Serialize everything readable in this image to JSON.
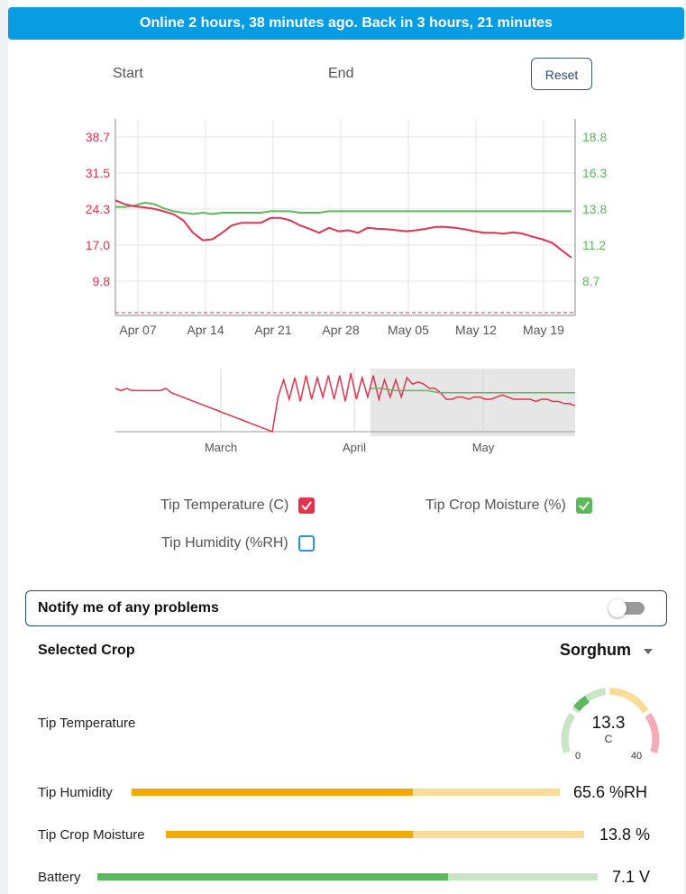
{
  "banner": {
    "text": "Online 2 hours, 38 minutes ago. Back in 3 hours, 21 minutes"
  },
  "range": {
    "start_label": "Start",
    "end_label": "End",
    "reset_label": "Reset"
  },
  "colors": {
    "banner": "#089de3",
    "temperature": "#e0344f",
    "moisture": "#5cb85c",
    "humidity": "#2a95d6",
    "bar_fill": "#f2a900",
    "bar_track": "#f9dc97",
    "battery_fill": "#5cb85c",
    "battery_track": "#c8e6c4"
  },
  "chart_data": [
    {
      "type": "line",
      "x_tick_labels": [
        "Apr 07",
        "Apr 14",
        "Apr 21",
        "Apr 28",
        "May 05",
        "May 12",
        "May 19"
      ],
      "y_left_ticks": [
        "38.7",
        "31.5",
        "24.3",
        "17.0",
        "9.8"
      ],
      "y_right_ticks": [
        "18.8",
        "16.3",
        "13.8",
        "11.2",
        "8.7"
      ],
      "grid": true,
      "series": [
        {
          "name": "Tip Temperature (C)",
          "axis": "left",
          "x": [
            "Apr 05",
            "Apr 06",
            "Apr 07",
            "Apr 08",
            "Apr 09",
            "Apr 10",
            "Apr 11",
            "Apr 12",
            "Apr 13",
            "Apr 14",
            "Apr 15",
            "Apr 16",
            "Apr 17",
            "Apr 18",
            "Apr 19",
            "Apr 20",
            "Apr 21",
            "Apr 22",
            "Apr 23",
            "Apr 24",
            "Apr 25",
            "Apr 26",
            "Apr 27",
            "Apr 28",
            "Apr 29",
            "Apr 30",
            "May 01",
            "May 02",
            "May 03",
            "May 04",
            "May 05",
            "May 06",
            "May 07",
            "May 08",
            "May 09",
            "May 10",
            "May 11",
            "May 12",
            "May 13",
            "May 14",
            "May 15",
            "May 16",
            "May 17",
            "May 18",
            "May 19",
            "May 20",
            "May 21",
            "May 22"
          ],
          "y": [
            26.0,
            25.2,
            24.8,
            24.6,
            24.3,
            23.8,
            23.2,
            22.0,
            19.5,
            18.0,
            18.2,
            19.5,
            21.0,
            21.5,
            21.5,
            21.5,
            22.5,
            22.5,
            22.0,
            21.0,
            20.3,
            19.5,
            20.5,
            19.8,
            20.0,
            19.5,
            20.5,
            20.3,
            20.2,
            20.0,
            19.8,
            20.0,
            20.3,
            20.7,
            20.7,
            20.5,
            20.2,
            19.8,
            19.5,
            19.5,
            19.3,
            19.6,
            19.3,
            18.7,
            18.2,
            17.5,
            16.0,
            14.5
          ]
        },
        {
          "name": "Tip Crop Moisture (%)",
          "axis": "right",
          "x": [
            "Apr 05",
            "Apr 06",
            "Apr 07",
            "Apr 08",
            "Apr 09",
            "Apr 10",
            "Apr 11",
            "Apr 12",
            "Apr 13",
            "Apr 14",
            "Apr 15",
            "Apr 16",
            "Apr 17",
            "Apr 18",
            "Apr 19",
            "Apr 20",
            "Apr 21",
            "Apr 22",
            "Apr 23",
            "Apr 24",
            "Apr 25",
            "Apr 26",
            "Apr 27",
            "Apr 28",
            "Apr 29",
            "Apr 30",
            "May 01",
            "May 02",
            "May 03",
            "May 04",
            "May 05",
            "May 06",
            "May 07",
            "May 08",
            "May 09",
            "May 10",
            "May 11",
            "May 12",
            "May 13",
            "May 14",
            "May 15",
            "May 16",
            "May 17",
            "May 18",
            "May 19",
            "May 20",
            "May 21",
            "May 22"
          ],
          "y": [
            13.9,
            13.9,
            14.0,
            14.2,
            14.1,
            13.8,
            13.6,
            13.5,
            13.4,
            13.5,
            13.4,
            13.5,
            13.5,
            13.5,
            13.5,
            13.5,
            13.6,
            13.6,
            13.6,
            13.5,
            13.5,
            13.5,
            13.6,
            13.6,
            13.6,
            13.6,
            13.6,
            13.6,
            13.6,
            13.6,
            13.6,
            13.6,
            13.6,
            13.6,
            13.6,
            13.6,
            13.6,
            13.6,
            13.6,
            13.6,
            13.6,
            13.6,
            13.6,
            13.6,
            13.6,
            13.6,
            13.6,
            13.6
          ]
        }
      ]
    },
    {
      "type": "line",
      "x_tick_labels": [
        "March",
        "April",
        "May"
      ],
      "series": [
        {
          "name": "Tip Temperature (C)",
          "y": [
            2,
            1.9,
            2,
            1.9,
            1.9,
            1.9,
            1.9,
            1.9,
            1.9,
            2,
            1.8,
            1.7,
            1.6,
            1.5,
            1.4,
            1.3,
            1.2,
            1.1,
            1.0,
            0.9,
            0.8,
            0.7,
            0.6,
            0.5,
            0.4,
            0.3,
            0.2,
            0.1,
            0.0,
            1.6,
            2.4,
            1.5,
            2.5,
            1.4,
            2.6,
            1.5,
            2.5,
            1.6,
            2.6,
            1.5,
            2.6,
            1.4,
            2.7,
            1.5,
            2.5,
            1.6,
            2.6,
            1.5,
            2.4,
            1.6,
            2.4,
            1.6,
            2.5,
            2.2,
            2.3,
            2.2,
            2.0,
            2.0,
            1.8,
            1.5,
            1.5,
            1.6,
            1.6,
            1.5,
            1.6,
            1.6,
            1.5,
            1.5,
            1.6,
            1.7,
            1.6,
            1.5,
            1.5,
            1.5,
            1.5,
            1.4,
            1.5,
            1.5,
            1.4,
            1.4,
            1.3,
            1.3,
            1.2
          ]
        },
        {
          "name": "Tip Crop Moisture (%)",
          "y": [
            2.0,
            2.0,
            1.9,
            1.9,
            1.9,
            1.9,
            1.8,
            1.8,
            1.8,
            1.8,
            1.8,
            1.8,
            1.8,
            1.8,
            1.8,
            1.8,
            1.8,
            1.8,
            1.8
          ]
        }
      ]
    }
  ],
  "legend": {
    "temperature": {
      "label": "Tip Temperature (C)",
      "checked": true
    },
    "moisture": {
      "label": "Tip Crop Moisture (%)",
      "checked": true
    },
    "humidity": {
      "label": "Tip Humidity (%RH)",
      "checked": false
    }
  },
  "notify": {
    "label": "Notify me of any problems",
    "enabled": false
  },
  "crop": {
    "label": "Selected Crop",
    "value": "Sorghum"
  },
  "metrics": {
    "temperature": {
      "label": "Tip Temperature",
      "value": "13.3",
      "unit": "C",
      "min": "0",
      "max": "40"
    },
    "humidity": {
      "label": "Tip Humidity",
      "value": "65.6 %RH",
      "fill_fraction": 0.656
    },
    "moisture": {
      "label": "Tip Crop Moisture",
      "value": "13.8 %",
      "fill_fraction": 0.59
    },
    "battery": {
      "label": "Battery",
      "value": "7.1 V",
      "fill_fraction": 0.7
    }
  }
}
